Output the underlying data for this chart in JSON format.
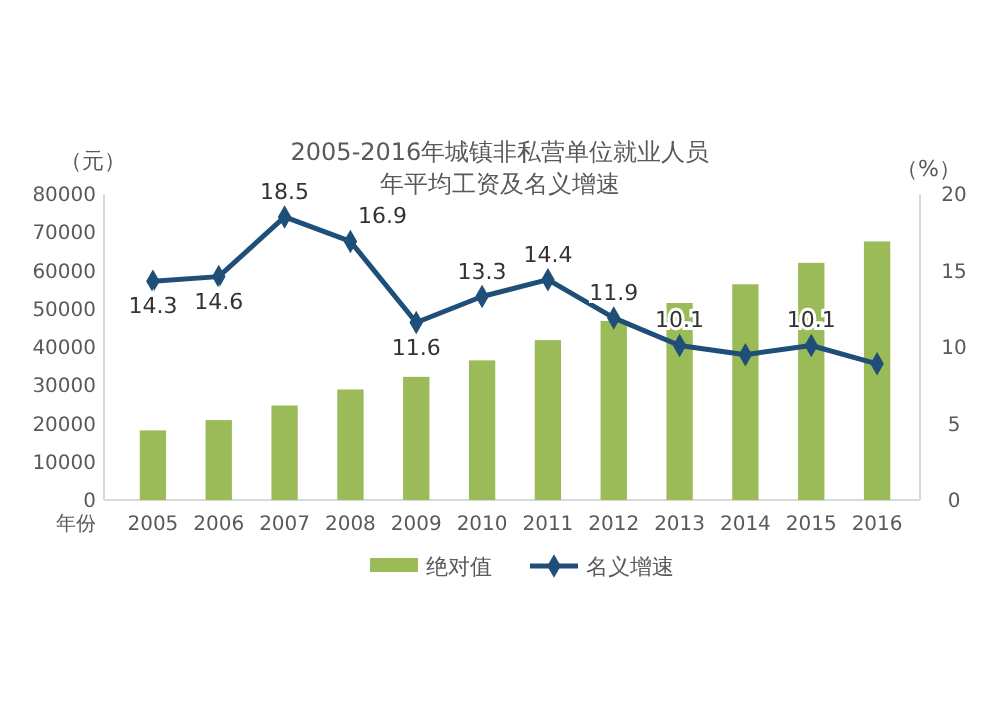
{
  "chart_data": {
    "type": "bar",
    "title": "2005-2016年城镇非私营单位就业人员",
    "subtitle": "年平均工资及名义增速",
    "ylabel": "（元）",
    "y2label": "（%）",
    "xlabel": "年份",
    "categories": [
      "2005",
      "2006",
      "2007",
      "2008",
      "2009",
      "2010",
      "2011",
      "2012",
      "2013",
      "2014",
      "2015",
      "2016"
    ],
    "series": [
      {
        "name": "绝对值",
        "color": "#9bbb59",
        "values": [
          18200,
          20900,
          24700,
          28900,
          32200,
          36500,
          41800,
          46800,
          51500,
          56400,
          62000,
          67600
        ]
      },
      {
        "name": "名义增速",
        "type": "line",
        "axis": "y2",
        "color": "#1f4e79",
        "marker": "diamond",
        "values": [
          14.3,
          14.6,
          18.5,
          16.9,
          11.6,
          13.3,
          14.4,
          11.9,
          10.1,
          9.5,
          10.1,
          8.9
        ],
        "value_labels": [
          "14.3",
          "14.6",
          "18.5",
          "16.9",
          "11.6",
          "13.3",
          "14.4",
          "11.9",
          "10.1",
          null,
          "10.1",
          null
        ]
      }
    ],
    "ylim": [
      0,
      80000
    ],
    "yticks": [
      0,
      10000,
      20000,
      30000,
      40000,
      50000,
      60000,
      70000,
      80000
    ],
    "y2lim": [
      0,
      20
    ],
    "y2ticks": [
      0,
      5,
      10,
      15,
      20
    ],
    "legend": "bottom"
  }
}
